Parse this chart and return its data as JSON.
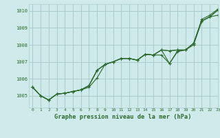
{
  "title": "Graphe pression niveau de la mer (hPa)",
  "bg_color": "#ceeaea",
  "grid_color": "#aacccc",
  "line_color": "#2d6a2d",
  "xlim": [
    -0.5,
    23
  ],
  "ylim": [
    1004.3,
    1010.4
  ],
  "yticks": [
    1005,
    1006,
    1007,
    1008,
    1009,
    1010
  ],
  "xticks": [
    0,
    1,
    2,
    3,
    4,
    5,
    6,
    7,
    8,
    9,
    10,
    11,
    12,
    13,
    14,
    15,
    16,
    17,
    18,
    19,
    20,
    21,
    22,
    23
  ],
  "series": [
    [
      1005.5,
      1005.0,
      1004.75,
      1005.1,
      1005.15,
      1005.25,
      1005.35,
      1005.5,
      1006.05,
      1006.85,
      1007.0,
      1007.2,
      1007.2,
      1007.1,
      1007.45,
      1007.4,
      1007.4,
      1006.9,
      1007.6,
      1007.7,
      1008.0,
      1009.4,
      1009.65,
      1009.75
    ],
    [
      1005.5,
      1005.0,
      1004.75,
      1005.1,
      1005.15,
      1005.25,
      1005.35,
      1005.55,
      1006.45,
      1006.85,
      1007.0,
      1007.2,
      1007.2,
      1007.1,
      1007.45,
      1007.4,
      1007.65,
      1007.65,
      1007.7,
      1007.7,
      1008.05,
      1009.4,
      1009.65,
      1010.0
    ],
    [
      1005.5,
      1005.0,
      1004.75,
      1005.1,
      1005.15,
      1005.25,
      1005.35,
      1005.55,
      1006.45,
      1006.85,
      1007.0,
      1007.2,
      1007.2,
      1007.1,
      1007.45,
      1007.4,
      1007.65,
      1007.65,
      1007.7,
      1007.7,
      1008.05,
      1009.4,
      1009.65,
      1010.05
    ]
  ],
  "series4": [
    1005.5,
    1005.0,
    1004.75,
    1005.1,
    1005.15,
    1005.25,
    1005.35,
    1005.55,
    1006.45,
    1006.85,
    1007.0,
    1007.2,
    1007.2,
    1007.1,
    1007.45,
    1007.4,
    1007.0,
    1007.65,
    1007.65,
    1007.7,
    1007.7,
    1009.4,
    1009.65,
    1010.05
  ]
}
